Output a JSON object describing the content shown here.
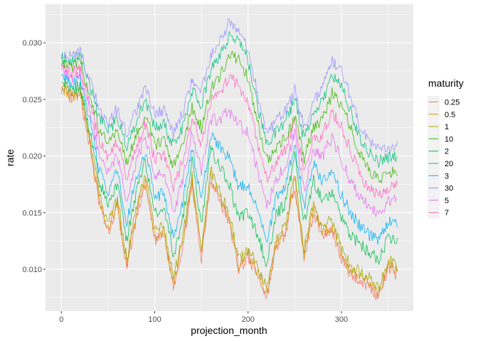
{
  "chart_data": {
    "type": "line",
    "title": "",
    "xlabel": "projection_month",
    "ylabel": "rate",
    "xlim": [
      -17,
      377
    ],
    "ylim": [
      0.0063,
      0.0334
    ],
    "x_ticks": [
      0,
      100,
      200,
      300
    ],
    "x_tick_labels": [
      "0",
      "100",
      "200",
      "300"
    ],
    "y_ticks": [
      0.01,
      0.015,
      0.02,
      0.025,
      0.03
    ],
    "y_tick_labels": [
      "0.010",
      "0.015",
      "0.020",
      "0.025",
      "0.030"
    ],
    "grid": true,
    "legend": {
      "title": "maturity",
      "position": "right"
    },
    "x_step": 10,
    "x_start": 0,
    "series": [
      {
        "name": "0.25",
        "color": "#F8766D",
        "values": [
          0.026,
          0.025,
          0.0255,
          0.021,
          0.016,
          0.0132,
          0.0155,
          0.01,
          0.0145,
          0.0175,
          0.0125,
          0.013,
          0.0085,
          0.012,
          0.0175,
          0.011,
          0.018,
          0.016,
          0.014,
          0.01,
          0.011,
          0.0095,
          0.0075,
          0.012,
          0.013,
          0.0175,
          0.011,
          0.015,
          0.013,
          0.0135,
          0.011,
          0.0095,
          0.009,
          0.0085,
          0.0075,
          0.01,
          0.0095
        ]
      },
      {
        "name": "0.5",
        "color": "#D89000",
        "values": [
          0.0262,
          0.0252,
          0.0257,
          0.0213,
          0.0163,
          0.0135,
          0.0158,
          0.0103,
          0.0148,
          0.0178,
          0.0128,
          0.0133,
          0.0088,
          0.0123,
          0.0178,
          0.0113,
          0.0183,
          0.0163,
          0.0143,
          0.0103,
          0.0113,
          0.0098,
          0.0078,
          0.0123,
          0.0133,
          0.0178,
          0.0113,
          0.0153,
          0.0133,
          0.0138,
          0.0113,
          0.0098,
          0.0093,
          0.0088,
          0.0078,
          0.0103,
          0.0098
        ]
      },
      {
        "name": "1",
        "color": "#A3A500",
        "values": [
          0.0265,
          0.0255,
          0.026,
          0.0218,
          0.0168,
          0.014,
          0.0163,
          0.0108,
          0.0153,
          0.0183,
          0.0133,
          0.0138,
          0.0093,
          0.0128,
          0.0183,
          0.0118,
          0.0188,
          0.0168,
          0.0148,
          0.0108,
          0.0118,
          0.0103,
          0.0083,
          0.0128,
          0.0138,
          0.0183,
          0.0118,
          0.0158,
          0.0138,
          0.0143,
          0.0118,
          0.0103,
          0.0098,
          0.0093,
          0.0083,
          0.0108,
          0.0103
        ]
      },
      {
        "name": "10",
        "color": "#39B600",
        "values": [
          0.0283,
          0.0278,
          0.0283,
          0.0255,
          0.0225,
          0.021,
          0.0222,
          0.0195,
          0.0218,
          0.0238,
          0.021,
          0.0213,
          0.019,
          0.0208,
          0.0243,
          0.0225,
          0.0258,
          0.027,
          0.029,
          0.0285,
          0.027,
          0.023,
          0.0195,
          0.0208,
          0.0215,
          0.0235,
          0.0198,
          0.0225,
          0.0232,
          0.0255,
          0.0245,
          0.0225,
          0.02,
          0.0188,
          0.018,
          0.0185,
          0.0188
        ]
      },
      {
        "name": "2",
        "color": "#00BB4E",
        "values": [
          0.0268,
          0.0258,
          0.0263,
          0.0225,
          0.018,
          0.0155,
          0.0175,
          0.0125,
          0.0168,
          0.0195,
          0.015,
          0.0155,
          0.0112,
          0.0145,
          0.0195,
          0.014,
          0.0205,
          0.019,
          0.0175,
          0.0145,
          0.015,
          0.013,
          0.0105,
          0.0148,
          0.0158,
          0.02,
          0.014,
          0.0178,
          0.016,
          0.0168,
          0.0145,
          0.013,
          0.0122,
          0.0115,
          0.0108,
          0.0128,
          0.0125
        ]
      },
      {
        "name": "20",
        "color": "#00BF7D",
        "values": [
          0.0287,
          0.0283,
          0.0288,
          0.0262,
          0.0235,
          0.0222,
          0.0233,
          0.021,
          0.023,
          0.025,
          0.0225,
          0.0228,
          0.0208,
          0.0225,
          0.0258,
          0.0245,
          0.0275,
          0.029,
          0.0305,
          0.03,
          0.0285,
          0.0245,
          0.021,
          0.0222,
          0.023,
          0.025,
          0.0215,
          0.024,
          0.025,
          0.027,
          0.0262,
          0.024,
          0.0215,
          0.0203,
          0.0195,
          0.0198,
          0.02
        ]
      },
      {
        "name": "3",
        "color": "#00B0F6",
        "values": [
          0.0272,
          0.0263,
          0.0268,
          0.0232,
          0.019,
          0.0168,
          0.0187,
          0.0142,
          0.018,
          0.0205,
          0.0163,
          0.0168,
          0.0128,
          0.016,
          0.0208,
          0.0158,
          0.0218,
          0.0207,
          0.0198,
          0.0172,
          0.0175,
          0.0152,
          0.0125,
          0.0163,
          0.0173,
          0.0212,
          0.0155,
          0.0192,
          0.0178,
          0.0188,
          0.0165,
          0.015,
          0.0138,
          0.013,
          0.0125,
          0.0142,
          0.014
        ]
      },
      {
        "name": "30",
        "color": "#9590FF",
        "values": [
          0.029,
          0.0287,
          0.0292,
          0.0268,
          0.0243,
          0.023,
          0.0242,
          0.022,
          0.024,
          0.026,
          0.0237,
          0.024,
          0.022,
          0.0238,
          0.0268,
          0.0258,
          0.0288,
          0.0302,
          0.0318,
          0.0312,
          0.0295,
          0.0255,
          0.022,
          0.023,
          0.024,
          0.0258,
          0.0225,
          0.0248,
          0.0262,
          0.0283,
          0.0275,
          0.0252,
          0.0225,
          0.0212,
          0.0205,
          0.0207,
          0.0208
        ]
      },
      {
        "name": "5",
        "color": "#E76BF3",
        "values": [
          0.0276,
          0.0268,
          0.0273,
          0.024,
          0.0203,
          0.0185,
          0.02,
          0.0162,
          0.0195,
          0.0218,
          0.0182,
          0.0185,
          0.015,
          0.0178,
          0.0222,
          0.0185,
          0.0232,
          0.0232,
          0.024,
          0.0228,
          0.022,
          0.0188,
          0.0155,
          0.018,
          0.019,
          0.0222,
          0.017,
          0.0205,
          0.02,
          0.0218,
          0.0195,
          0.0178,
          0.0163,
          0.0155,
          0.0148,
          0.016,
          0.016
        ]
      },
      {
        "name": "7",
        "color": "#FF62BC",
        "values": [
          0.028,
          0.0273,
          0.0278,
          0.0248,
          0.0215,
          0.0198,
          0.0212,
          0.018,
          0.0208,
          0.0228,
          0.0198,
          0.02,
          0.0172,
          0.0195,
          0.0235,
          0.0208,
          0.0248,
          0.0255,
          0.027,
          0.0262,
          0.0248,
          0.0212,
          0.0178,
          0.0195,
          0.0205,
          0.023,
          0.0185,
          0.0215,
          0.0218,
          0.024,
          0.0225,
          0.0205,
          0.0183,
          0.0172,
          0.0165,
          0.0172,
          0.0175
        ]
      }
    ]
  }
}
